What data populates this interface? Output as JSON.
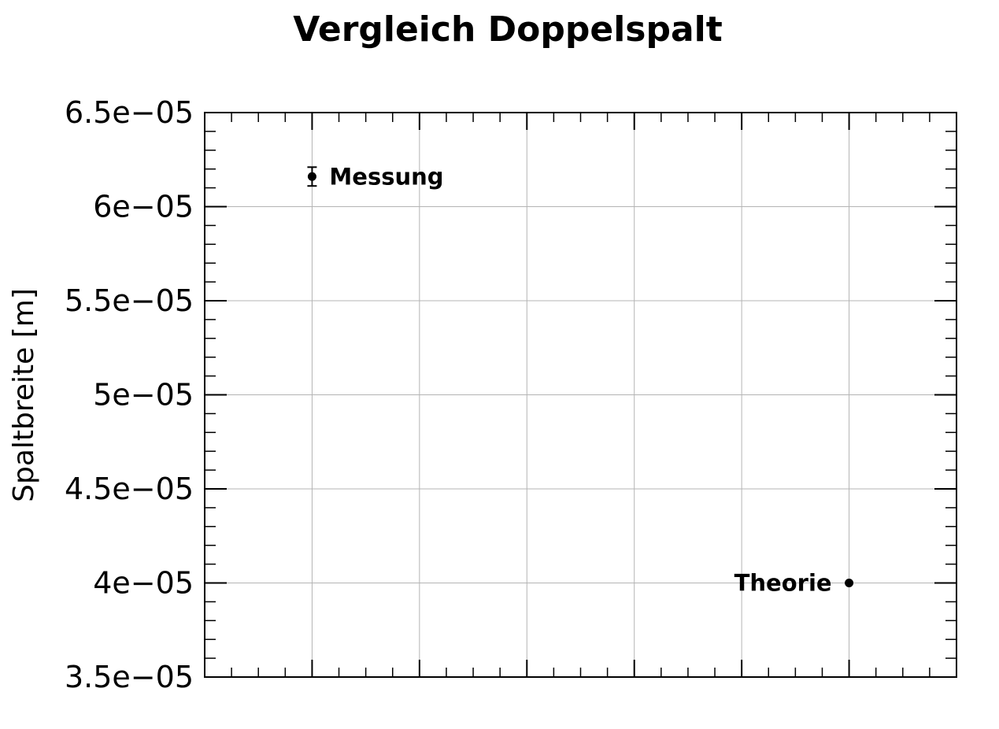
{
  "chart_data": {
    "type": "scatter",
    "title": "Vergleich Doppelspalt",
    "xlabel": "",
    "ylabel": "Spaltbreite [m]",
    "xlim": [
      0,
      7
    ],
    "ylim": [
      3.5e-05,
      6.5e-05
    ],
    "yticks": [
      {
        "value": 3.5e-05,
        "label": "3.5e−05"
      },
      {
        "value": 4e-05,
        "label": "4e−05"
      },
      {
        "value": 4.5e-05,
        "label": "4.5e−05"
      },
      {
        "value": 5e-05,
        "label": "5e−05"
      },
      {
        "value": 5.5e-05,
        "label": "5.5e−05"
      },
      {
        "value": 6e-05,
        "label": "6e−05"
      },
      {
        "value": 6.5e-05,
        "label": "6.5e−05"
      }
    ],
    "xgrid": [
      1,
      2,
      3,
      4,
      5,
      6
    ],
    "grid": true,
    "points": [
      {
        "label": "Messung",
        "x": 1,
        "y": 6.16e-05,
        "yerr": 5e-07,
        "label_side": "right"
      },
      {
        "label": "Theorie",
        "x": 6,
        "y": 4e-05,
        "yerr": 0,
        "label_side": "left"
      }
    ],
    "colors": {
      "marker": "#000000",
      "grid": "#b4b4b4",
      "axis": "#000000"
    }
  }
}
